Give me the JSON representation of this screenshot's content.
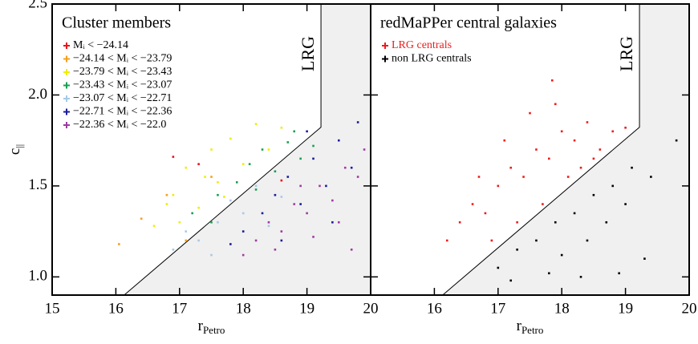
{
  "chart_data": [
    {
      "type": "scatter",
      "title": "Cluster members",
      "x_label": "r",
      "x_label_sub": "Petro",
      "y_label": "c",
      "y_label_sub": "||",
      "annotation": "LRG",
      "legend": "upper left",
      "legend_text_colored": false,
      "show_ytick_labels": true,
      "xlim": [
        15,
        20
      ],
      "ylim": [
        0.9,
        2.5
      ],
      "xticks": [
        15,
        16,
        17,
        18,
        19,
        20
      ],
      "yticks": [
        {
          "value": 1,
          "label": "1.0"
        },
        {
          "value": 1.5,
          "label": "1.5"
        },
        {
          "value": 2,
          "label": "2.0"
        },
        {
          "value": 2.5,
          "label": "2.5"
        }
      ],
      "lrg_boundary": {
        "x": [
          16.13,
          19.22,
          19.22
        ],
        "y": [
          0.9,
          1.823,
          2.5
        ]
      },
      "series": [
        {
          "name": "Mᵢ < −24.14",
          "color": "#e8141c",
          "x": [
            16.9,
            17.3,
            18.6
          ],
          "values": [
            1.66,
            1.62,
            1.53
          ]
        },
        {
          "name": "−24.14 < Mᵢ < −23.79",
          "color": "#f5a020",
          "x": [
            16.05,
            16.4,
            16.8,
            17.1,
            17.5
          ],
          "values": [
            1.18,
            1.32,
            1.45,
            1.2,
            1.55
          ]
        },
        {
          "name": "−23.79 < Mᵢ < −23.43",
          "color": "#eeee00",
          "x": [
            16.6,
            16.9,
            17.1,
            17.3,
            17.5,
            17.6,
            17.8,
            18.0,
            18.2,
            18.4,
            17.0,
            17.7,
            18.6,
            16.8,
            17.4
          ],
          "values": [
            1.28,
            1.45,
            1.6,
            1.38,
            1.7,
            1.52,
            1.76,
            1.62,
            1.84,
            1.7,
            1.3,
            1.44,
            1.82,
            1.4,
            1.55
          ]
        },
        {
          "name": "−23.43 < Mᵢ < −23.07",
          "color": "#18a050",
          "x": [
            17.2,
            17.6,
            17.9,
            18.1,
            18.3,
            18.5,
            18.7,
            18.9,
            18.2,
            18.8,
            17.5,
            19.1
          ],
          "values": [
            1.35,
            1.45,
            1.52,
            1.62,
            1.7,
            1.58,
            1.74,
            1.65,
            1.48,
            1.8,
            1.3,
            1.72
          ]
        },
        {
          "name": "−23.07 < Mᵢ < −22.71",
          "color": "#a8c8e8",
          "x": [
            16.9,
            17.1,
            17.3,
            17.6,
            17.8,
            18.0,
            18.2,
            18.4,
            17.5,
            18.6
          ],
          "values": [
            1.15,
            1.25,
            1.2,
            1.3,
            1.42,
            1.35,
            1.5,
            1.28,
            1.12,
            1.44
          ]
        },
        {
          "name": "−22.71 < Mᵢ < −22.36",
          "color": "#1c1c9c",
          "x": [
            17.8,
            18.0,
            18.3,
            18.5,
            18.7,
            18.9,
            19.1,
            19.3,
            19.5,
            19.7,
            18.6,
            19.0,
            19.4,
            19.8
          ],
          "values": [
            1.18,
            1.25,
            1.35,
            1.45,
            1.55,
            1.4,
            1.65,
            1.5,
            1.75,
            1.6,
            1.2,
            1.8,
            1.3,
            1.85
          ]
        },
        {
          "name": "−22.36 < Mᵢ < −22.0",
          "color": "#9c3ca0",
          "x": [
            18.0,
            18.2,
            18.4,
            18.6,
            18.8,
            19.0,
            19.2,
            19.4,
            19.6,
            19.8,
            19.9,
            18.5,
            19.1,
            19.5,
            19.7,
            18.9
          ],
          "values": [
            1.12,
            1.2,
            1.3,
            1.25,
            1.4,
            1.35,
            1.5,
            1.42,
            1.6,
            1.55,
            1.7,
            1.15,
            1.22,
            1.3,
            1.15,
            1.5
          ]
        }
      ]
    },
    {
      "type": "scatter",
      "title": "redMaPPer central galaxies",
      "x_label": "r",
      "x_label_sub": "Petro",
      "annotation": "LRG",
      "legend": "upper left",
      "legend_text_colored": true,
      "show_ytick_labels": false,
      "xlim": [
        15,
        20
      ],
      "ylim": [
        0.9,
        2.5
      ],
      "xticks": [
        16,
        17,
        18,
        19,
        20
      ],
      "yticks": [
        {
          "value": 1,
          "label": "1.0"
        },
        {
          "value": 1.5,
          "label": "1.5"
        },
        {
          "value": 2,
          "label": "2.0"
        },
        {
          "value": 2.5,
          "label": "2.5"
        }
      ],
      "lrg_boundary": {
        "x": [
          16.13,
          19.22,
          19.22
        ],
        "y": [
          0.9,
          1.823,
          2.5
        ]
      },
      "series": [
        {
          "name": "LRG centrals",
          "color": "#ee1c1c",
          "x": [
            16.2,
            16.4,
            16.6,
            16.8,
            17.0,
            17.2,
            17.4,
            17.6,
            17.8,
            18.0,
            18.2,
            18.4,
            18.6,
            18.8,
            19.0,
            17.5,
            17.9,
            18.3,
            16.9,
            17.3,
            17.7,
            18.1,
            18.5,
            17.1,
            16.7,
            17.85
          ],
          "values": [
            1.2,
            1.3,
            1.4,
            1.35,
            1.5,
            1.6,
            1.55,
            1.7,
            1.65,
            1.8,
            1.75,
            1.85,
            1.7,
            1.8,
            1.82,
            1.9,
            1.95,
            1.6,
            1.2,
            1.3,
            1.4,
            1.55,
            1.65,
            1.75,
            1.55,
            2.08
          ]
        },
        {
          "name": "non LRG centrals",
          "color": "#000000",
          "x": [
            17.0,
            17.3,
            17.6,
            17.9,
            18.2,
            18.5,
            18.8,
            19.1,
            19.4,
            18.0,
            18.4,
            18.7,
            19.0,
            17.8,
            19.3,
            18.9,
            19.8,
            17.2,
            18.3
          ],
          "values": [
            1.05,
            1.15,
            1.2,
            1.3,
            1.35,
            1.45,
            1.5,
            1.6,
            1.55,
            1.12,
            1.2,
            1.3,
            1.4,
            1.02,
            1.1,
            1.02,
            1.75,
            0.98,
            1.0
          ]
        }
      ]
    }
  ]
}
